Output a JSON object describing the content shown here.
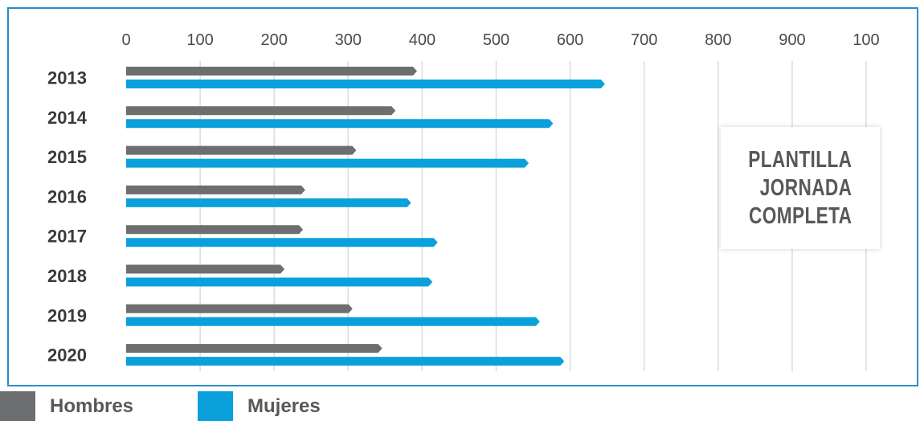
{
  "chart_data": {
    "type": "bar",
    "orientation": "horizontal",
    "title_lines": [
      "PLANTILLA",
      "JORNADA",
      "COMPLETA"
    ],
    "categories": [
      "2013",
      "2014",
      "2015",
      "2016",
      "2017",
      "2018",
      "2019",
      "2020"
    ],
    "x_ticks": [
      "0",
      "100",
      "200",
      "300",
      "400",
      "500",
      "600",
      "700",
      "800",
      "900",
      "100"
    ],
    "xlim": [
      0,
      1000
    ],
    "grid": true,
    "series": [
      {
        "name": "Hombres",
        "color": "#6d6e70",
        "values": [
          393,
          364,
          311,
          242,
          239,
          214,
          306,
          346
        ]
      },
      {
        "name": "Mujeres",
        "color": "#0aa0dc",
        "values": [
          647,
          577,
          544,
          385,
          421,
          414,
          559,
          592
        ]
      }
    ],
    "legend_position": "bottom-left"
  }
}
